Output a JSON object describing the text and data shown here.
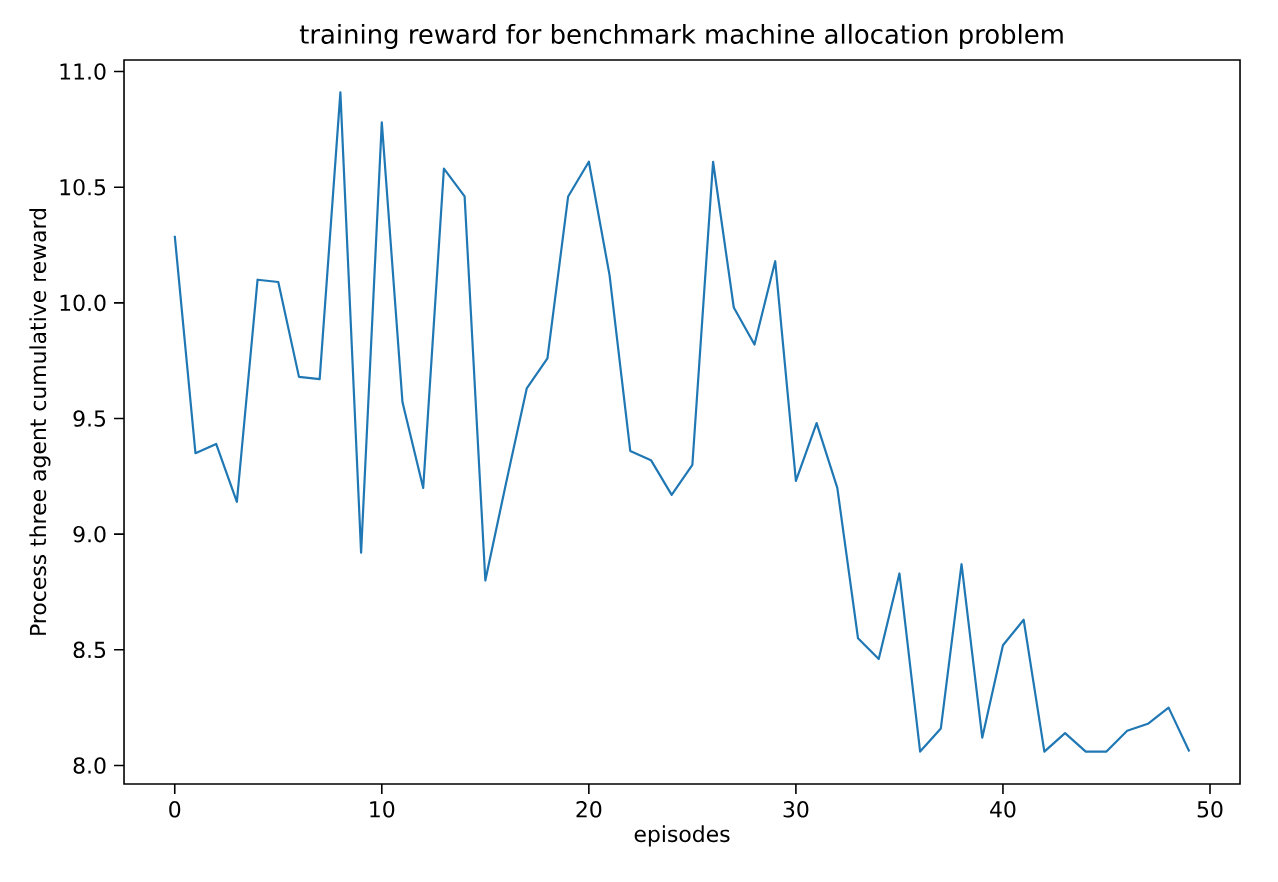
{
  "chart_data": {
    "type": "line",
    "title": "training reward for benchmark machine allocation problem",
    "xlabel": "episodes",
    "ylabel": "Process three agent cumulative reward",
    "x": [
      0,
      1,
      2,
      3,
      4,
      5,
      6,
      7,
      8,
      9,
      10,
      11,
      12,
      13,
      14,
      15,
      16,
      17,
      18,
      19,
      20,
      21,
      22,
      23,
      24,
      25,
      26,
      27,
      28,
      29,
      30,
      31,
      32,
      33,
      34,
      35,
      36,
      37,
      38,
      39,
      40,
      41,
      42,
      43,
      44,
      45,
      46,
      47,
      48,
      49
    ],
    "series": [
      {
        "color": "#1f77b4",
        "values": [
          10.29,
          9.35,
          9.39,
          9.14,
          10.1,
          10.09,
          9.68,
          9.67,
          10.91,
          8.92,
          10.78,
          9.57,
          9.2,
          10.58,
          10.46,
          8.8,
          9.22,
          9.63,
          9.76,
          10.46,
          10.61,
          10.12,
          9.36,
          9.32,
          9.17,
          9.3,
          10.61,
          9.98,
          9.82,
          10.18,
          9.23,
          9.48,
          9.2,
          8.55,
          8.46,
          8.83,
          8.06,
          8.16,
          8.87,
          8.12,
          8.52,
          8.63,
          8.06,
          8.14,
          8.06,
          8.06,
          8.15,
          8.18,
          8.25,
          8.06
        ]
      }
    ],
    "xlim": [
      -2.45,
      51.45
    ],
    "ylim": [
      7.92,
      11.05
    ],
    "xticks": [
      0,
      10,
      20,
      30,
      40,
      50
    ],
    "yticks": [
      {
        "value": 8,
        "label": "8.0"
      },
      8.5,
      {
        "value": 9,
        "label": "9.0"
      },
      9.5,
      {
        "value": 10,
        "label": "10.0"
      },
      10.5,
      {
        "value": 11,
        "label": "11.0"
      }
    ],
    "grid": false,
    "marker": "none",
    "line_style": "solid"
  }
}
